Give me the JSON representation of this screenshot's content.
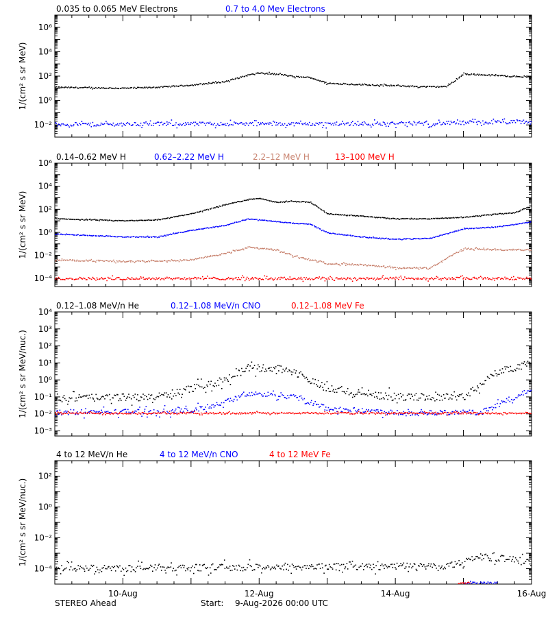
{
  "colors": {
    "black": "#000000",
    "blue": "#0000ff",
    "tan": "#c8826e",
    "red": "#ff0000",
    "background": "#ffffff"
  },
  "footer": {
    "left": "STEREO Ahead",
    "start_label": "Start:",
    "start_value": "9-Aug-2026 00:00 UTC"
  },
  "x_axis": {
    "range": [
      "2026-08-09 00:00",
      "2026-08-16 00:00"
    ],
    "tick_labels": [
      {
        "date": "2026-08-10",
        "label": "10-Aug"
      },
      {
        "date": "2026-08-12",
        "label": "12-Aug"
      },
      {
        "date": "2026-08-14",
        "label": "14-Aug"
      },
      {
        "date": "2026-08-16",
        "label": "16-Aug"
      }
    ],
    "minor_tick_step_hours": 6
  },
  "chart_data": [
    {
      "type": "scatter",
      "yscale": "log",
      "ylabel": "1/(cm² s sr MeV)",
      "ylim": [
        0.001,
        10000000
      ],
      "yticks": [
        {
          "value": 0.01,
          "label": "10⁻²"
        },
        {
          "value": 1,
          "label": "10⁰"
        },
        {
          "value": 100,
          "label": "10²"
        },
        {
          "value": 10000,
          "label": "10⁴"
        },
        {
          "value": 1000000,
          "label": "10⁶"
        }
      ],
      "series": [
        {
          "name": "0.035 to 0.065 MeV Electrons",
          "color": "#000000",
          "jitter": 0.08,
          "x": [
            "2026-08-09 00:00",
            "2026-08-10 00:00",
            "2026-08-10 12:00",
            "2026-08-11 00:00",
            "2026-08-11 12:00",
            "2026-08-11 20:00",
            "2026-08-12 00:00",
            "2026-08-12 08:00",
            "2026-08-12 12:00",
            "2026-08-12 18:00",
            "2026-08-13 00:00",
            "2026-08-13 12:00",
            "2026-08-14 00:00",
            "2026-08-14 12:00",
            "2026-08-14 18:00",
            "2026-08-15 00:00",
            "2026-08-15 12:00",
            "2026-08-16 00:00"
          ],
          "y": [
            12,
            10,
            12,
            18,
            35,
            120,
            180,
            130,
            90,
            75,
            25,
            20,
            16,
            13,
            14,
            150,
            110,
            80
          ]
        },
        {
          "name": "0.7 to 4.0 Mev Electrons",
          "color": "#0000ff",
          "jitter": 0.25,
          "x": [
            "2026-08-09 00:00",
            "2026-08-11 00:00",
            "2026-08-13 00:00",
            "2026-08-14 12:00",
            "2026-08-15 06:00",
            "2026-08-16 00:00"
          ],
          "y": [
            0.011,
            0.012,
            0.012,
            0.013,
            0.016,
            0.017
          ]
        }
      ]
    },
    {
      "type": "scatter",
      "yscale": "log",
      "ylabel": "1/(cm² s sr MeV)",
      "ylim": [
        2e-05,
        1000000
      ],
      "yticks": [
        {
          "value": 0.0001,
          "label": "10⁻⁴"
        },
        {
          "value": 0.01,
          "label": "10⁻²"
        },
        {
          "value": 1,
          "label": "10⁰"
        },
        {
          "value": 100,
          "label": "10²"
        },
        {
          "value": 10000,
          "label": "10⁴"
        },
        {
          "value": 1000000,
          "label": "10⁶"
        }
      ],
      "series": [
        {
          "name": "0.14–0.62 MeV H",
          "color": "#000000",
          "jitter": 0.05,
          "x": [
            "2026-08-09 00:00",
            "2026-08-10 00:00",
            "2026-08-10 12:00",
            "2026-08-11 00:00",
            "2026-08-11 12:00",
            "2026-08-11 20:00",
            "2026-08-12 00:00",
            "2026-08-12 06:00",
            "2026-08-12 12:00",
            "2026-08-12 18:00",
            "2026-08-13 00:00",
            "2026-08-13 12:00",
            "2026-08-14 00:00",
            "2026-08-14 12:00",
            "2026-08-15 00:00",
            "2026-08-15 12:00",
            "2026-08-15 18:00",
            "2026-08-16 00:00"
          ],
          "y": [
            15,
            10,
            12,
            40,
            250,
            700,
            900,
            400,
            500,
            400,
            40,
            25,
            15,
            15,
            20,
            40,
            50,
            200
          ]
        },
        {
          "name": "0.62–2.22 MeV H",
          "color": "#0000ff",
          "jitter": 0.05,
          "x": [
            "2026-08-09 00:00",
            "2026-08-10 00:00",
            "2026-08-10 12:00",
            "2026-08-11 00:00",
            "2026-08-11 12:00",
            "2026-08-11 20:00",
            "2026-08-12 00:00",
            "2026-08-12 12:00",
            "2026-08-12 18:00",
            "2026-08-13 00:00",
            "2026-08-13 12:00",
            "2026-08-14 00:00",
            "2026-08-14 12:00",
            "2026-08-15 00:00",
            "2026-08-15 12:00",
            "2026-08-16 00:00"
          ],
          "y": [
            0.7,
            0.4,
            0.4,
            1.5,
            4,
            15,
            12,
            6,
            5,
            0.9,
            0.4,
            0.25,
            0.3,
            2,
            3,
            8
          ]
        },
        {
          "name": "2.2–12 MeV H",
          "color": "#c8826e",
          "jitter": 0.1,
          "x": [
            "2026-08-09 00:00",
            "2026-08-10 00:00",
            "2026-08-11 00:00",
            "2026-08-11 12:00",
            "2026-08-11 20:00",
            "2026-08-12 06:00",
            "2026-08-12 12:00",
            "2026-08-13 00:00",
            "2026-08-13 12:00",
            "2026-08-14 00:00",
            "2026-08-14 12:00",
            "2026-08-15 00:00",
            "2026-08-15 12:00",
            "2026-08-16 00:00"
          ],
          "y": [
            0.004,
            0.003,
            0.004,
            0.015,
            0.05,
            0.03,
            0.009,
            0.002,
            0.0015,
            0.0008,
            0.0008,
            0.04,
            0.03,
            0.03
          ]
        },
        {
          "name": "13–100 MeV H",
          "color": "#ff0000",
          "jitter": 0.18,
          "x": [
            "2026-08-09 00:00",
            "2026-08-16 00:00"
          ],
          "y": [
            0.0001,
            0.0001
          ]
        }
      ]
    },
    {
      "type": "scatter",
      "yscale": "log",
      "ylabel": "1/(cm² s sr MeV/nuc.)",
      "ylim": [
        0.0005,
        10000
      ],
      "yticks": [
        {
          "value": 0.001,
          "label": "10⁻³"
        },
        {
          "value": 0.01,
          "label": "10⁻²"
        },
        {
          "value": 0.1,
          "label": "10⁻¹"
        },
        {
          "value": 1,
          "label": "10⁰"
        },
        {
          "value": 10,
          "label": "10¹"
        },
        {
          "value": 100,
          "label": "10²"
        },
        {
          "value": 1000,
          "label": "10³"
        },
        {
          "value": 10000,
          "label": "10⁴"
        }
      ],
      "series": [
        {
          "name": "0.12–1.08 MeV/n He",
          "color": "#000000",
          "jitter": 0.35,
          "x": [
            "2026-08-09 00:00",
            "2026-08-10 12:00",
            "2026-08-11 00:00",
            "2026-08-11 12:00",
            "2026-08-11 20:00",
            "2026-08-12 06:00",
            "2026-08-12 12:00",
            "2026-08-13 00:00",
            "2026-08-14 00:00",
            "2026-08-15 00:00",
            "2026-08-15 12:00",
            "2026-08-16 00:00"
          ],
          "y": [
            0.08,
            0.1,
            0.3,
            1,
            5,
            5,
            3,
            0.3,
            0.1,
            0.1,
            3,
            10
          ]
        },
        {
          "name": "0.12–1.08 MeV/n CNO",
          "color": "#0000ff",
          "jitter": 0.25,
          "x": [
            "2026-08-09 00:00",
            "2026-08-11 00:00",
            "2026-08-11 12:00",
            "2026-08-11 20:00",
            "2026-08-12 12:00",
            "2026-08-13 00:00",
            "2026-08-14 00:00",
            "2026-08-15 06:00",
            "2026-08-15 18:00",
            "2026-08-16 00:00"
          ],
          "y": [
            0.012,
            0.015,
            0.05,
            0.15,
            0.12,
            0.02,
            0.012,
            0.012,
            0.1,
            0.3
          ]
        },
        {
          "name": "0.12–1.08 MeV Fe",
          "color": "#ff0000",
          "jitter": 0.08,
          "x": [
            "2026-08-09 00:00",
            "2026-08-16 00:00"
          ],
          "y": [
            0.011,
            0.011
          ]
        }
      ]
    },
    {
      "type": "scatter",
      "yscale": "log",
      "ylabel": "1/(cm² s sr MeV/nuc.)",
      "ylim": [
        1e-05,
        1000
      ],
      "yticks": [
        {
          "value": 0.0001,
          "label": "10⁻⁴"
        },
        {
          "value": 0.01,
          "label": "10⁻²"
        },
        {
          "value": 1,
          "label": "10⁰"
        },
        {
          "value": 100,
          "label": "10²"
        }
      ],
      "series": [
        {
          "name": "4 to 12 MeV/n He",
          "color": "#000000",
          "jitter": 0.35,
          "x": [
            "2026-08-09 00:00",
            "2026-08-14 18:00",
            "2026-08-15 06:00",
            "2026-08-16 00:00"
          ],
          "y": [
            0.0001,
            0.00015,
            0.0006,
            0.0003
          ]
        },
        {
          "name": "4 to 12 MeV/n CNO",
          "color": "#0000ff",
          "jitter": 0.1,
          "x": [
            "2026-08-15 00:00",
            "2026-08-15 12:00"
          ],
          "y": [
            1.2e-05,
            1.2e-05
          ]
        },
        {
          "name": "4 to 12 MeV Fe",
          "color": "#ff0000",
          "jitter": 0.1,
          "x": [
            "2026-08-14 22:00",
            "2026-08-15 02:00"
          ],
          "y": [
            1.2e-05,
            1.2e-05
          ]
        }
      ]
    }
  ]
}
